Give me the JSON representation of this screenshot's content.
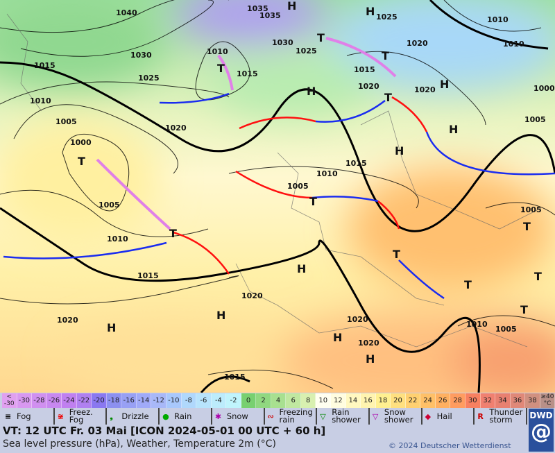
{
  "map": {
    "isobar_labels": [
      "1040",
      "1035",
      "1030",
      "1025",
      "1020",
      "1015",
      "1010",
      "1005",
      "1000",
      "1005",
      "1010",
      "1015",
      "1020",
      "1015",
      "1020",
      "1020",
      "1020",
      "1010",
      "1005",
      "1015",
      "1010",
      "1015",
      "1030",
      "1025",
      "1035",
      "1025",
      "1020",
      "1010",
      "1010",
      "1020",
      "1020",
      "1000",
      "1005",
      "1005",
      "1010",
      "1005",
      "1015"
    ],
    "pressure_centers": [
      "H",
      "H",
      "T",
      "T",
      "H",
      "T",
      "T",
      "H",
      "H",
      "H",
      "T",
      "T",
      "H",
      "H",
      "H",
      "H",
      "H",
      "T",
      "T",
      "T",
      "T",
      "T",
      "T"
    ],
    "colors": {
      "cold_front": "#1a2cf0",
      "warm_front": "#ff1010",
      "occlusion": "#e080e8",
      "isobar": "#000000"
    }
  },
  "scale": {
    "cells": [
      "<\n-30",
      "-30",
      "-28",
      "-26",
      "-24",
      "-22",
      "-20",
      "-18",
      "-16",
      "-14",
      "-12",
      "-10",
      "-8",
      "-6",
      "-4",
      "-2",
      "0",
      "2",
      "4",
      "6",
      "8",
      "10",
      "12",
      "14",
      "16",
      "18",
      "20",
      "22",
      "24",
      "26",
      "28",
      "30",
      "32",
      "34",
      "36",
      "38",
      "≥40 °C"
    ],
    "colors": [
      "#e0a0f0",
      "#d898f0",
      "#d090f0",
      "#c888f0",
      "#c080f0",
      "#b080f0",
      "#8a78f0",
      "#8c90f0",
      "#98a0f4",
      "#a0aaf8",
      "#a8b8f8",
      "#a8c8fc",
      "#b0d8fc",
      "#b8e4fc",
      "#bcecfc",
      "#c0f4fc",
      "#78d070",
      "#90d880",
      "#a8e090",
      "#c0e8a0",
      "#d8f0b0",
      "#fffff0",
      "#fffde0",
      "#fff8c0",
      "#fff4b0",
      "#fff090",
      "#ffe080",
      "#ffd070",
      "#ffc068",
      "#ffb060",
      "#ff9c60",
      "#f88060",
      "#f08070",
      "#e88070",
      "#e08878",
      "#d09080",
      "#b89088"
    ]
  },
  "weather_legend": [
    {
      "symbol": "fog-icon",
      "label": "Fog"
    },
    {
      "symbol": "freezing-fog-icon",
      "label": "Freez. Fog"
    },
    {
      "symbol": "drizzle-icon",
      "label": "Drizzle"
    },
    {
      "symbol": "rain-icon",
      "label": "Rain"
    },
    {
      "symbol": "snow-icon",
      "label": "Snow"
    },
    {
      "symbol": "freezing-rain-icon",
      "label": "Freezing rain"
    },
    {
      "symbol": "rain-shower-icon",
      "label": "Rain shower"
    },
    {
      "symbol": "snow-shower-icon",
      "label": "Snow shower"
    },
    {
      "symbol": "hail-icon",
      "label": "Hail"
    },
    {
      "symbol": "thunderstorm-icon",
      "label": "Thunder storm"
    }
  ],
  "footer": {
    "valid_time": "VT: 12 UTC Fr.  03 Mai [ICON 2024-05-01  00 UTC + 60 h]",
    "subtitle": "Sea level pressure (hPa), Weather, Temperature 2m (°C)",
    "copyright": "© 2024 Deutscher Wetterdienst",
    "logo": "DWD"
  }
}
